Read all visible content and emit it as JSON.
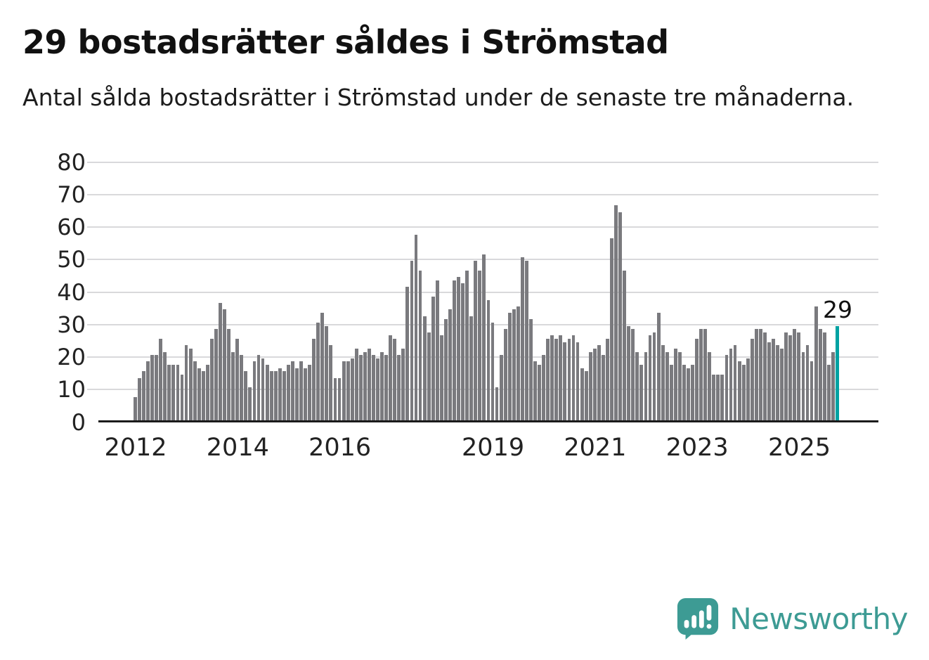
{
  "annotation": {
    "last_value_label": "29"
  },
  "branding": {
    "name": "Newsworthy",
    "icon": "speech-bubble-bar-chart-icon",
    "color": "#3d9b94"
  },
  "colors": {
    "bar": "#7a7a7e",
    "highlight": "#00a2a2",
    "grid": "#d9d9db",
    "axis": "#1b1b1b",
    "text": "#222222"
  },
  "chart_data": {
    "type": "bar",
    "title": "29 bostadsrätter såldes i Strömstad",
    "subtitle": "Antal sålda bostadsrätter i Strömstad under de senaste tre månaderna.",
    "x_frequency": "monthly",
    "x_start": "2012-01",
    "x_end": "2025-10",
    "x_tick_labels": [
      "2012",
      "2014",
      "2016",
      "2019",
      "2021",
      "2023",
      "2025"
    ],
    "x_tick_month_indices": [
      0,
      24,
      48,
      84,
      108,
      132,
      156
    ],
    "ylim": [
      0,
      80
    ],
    "y_ticks": [
      0,
      10,
      20,
      30,
      40,
      50,
      60,
      70,
      80
    ],
    "grid": true,
    "legend": false,
    "highlight_last": true,
    "highlight_value": 29,
    "values": [
      7,
      13,
      15,
      18,
      20,
      20,
      25,
      21,
      17,
      17,
      17,
      14,
      23,
      22,
      18,
      16,
      15,
      17,
      25,
      28,
      36,
      34,
      28,
      21,
      25,
      20,
      15,
      10,
      18,
      20,
      19,
      17,
      15,
      15,
      16,
      15,
      17,
      18,
      16,
      18,
      16,
      17,
      25,
      30,
      33,
      29,
      23,
      13,
      13,
      18,
      18,
      19,
      22,
      20,
      21,
      22,
      20,
      19,
      21,
      20,
      26,
      25,
      20,
      22,
      41,
      49,
      57,
      46,
      32,
      27,
      38,
      43,
      26,
      31,
      34,
      43,
      44,
      42,
      46,
      32,
      49,
      46,
      51,
      37,
      30,
      10,
      20,
      28,
      33,
      34,
      35,
      50,
      49,
      31,
      18,
      17,
      20,
      25,
      26,
      25,
      26,
      24,
      25,
      26,
      24,
      16,
      15,
      21,
      22,
      23,
      20,
      25,
      56,
      66,
      64,
      46,
      29,
      28,
      21,
      17,
      21,
      26,
      27,
      33,
      23,
      21,
      17,
      22,
      21,
      17,
      16,
      17,
      25,
      28,
      28,
      21,
      14,
      14,
      14,
      20,
      22,
      23,
      18,
      17,
      19,
      25,
      28,
      28,
      27,
      24,
      25,
      23,
      22,
      27,
      26,
      28,
      27,
      21,
      23,
      18,
      35,
      28,
      27,
      17,
      21,
      29
    ]
  }
}
